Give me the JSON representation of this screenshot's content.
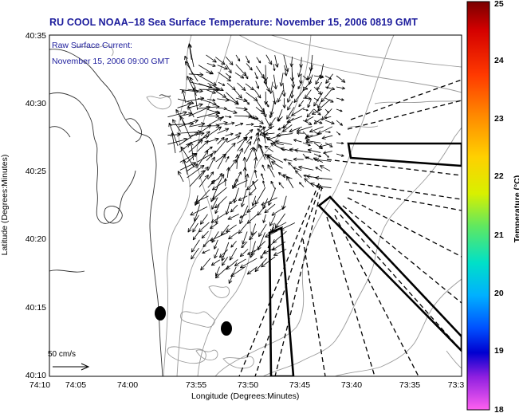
{
  "title": "RU COOL  NOAA–18  Sea Surface Temperature:  November 15, 2006 0819 GMT",
  "overlay": {
    "line1": "Raw Surface Current:",
    "line2": "November 15, 2006 09:00 GMT"
  },
  "scale_label": "50 cm/s",
  "axes": {
    "xlabel": "Longitude (Degrees:Minutes)",
    "ylabel": "Latitude (Degrees:Minutes)",
    "xticks": [
      "74:10",
      "74:05",
      "74:00",
      "73:55",
      "73:50",
      "73:45",
      "73:40",
      "73:35",
      "73:3"
    ],
    "yticks": [
      "40:35",
      "40:30",
      "40:25",
      "40:20",
      "40:15",
      "40:10"
    ]
  },
  "colorbar": {
    "label": "Temperature (°C)",
    "ticks": [
      "25",
      "24",
      "23",
      "22",
      "21",
      "20",
      "19",
      "18"
    ],
    "min": 18,
    "max": 25
  },
  "colors": {
    "title": "#1c1c9c",
    "overlay_text": "#1c1c9c",
    "frame": "#000000",
    "contour": "#9a9a9a",
    "coast": "#333333"
  }
}
